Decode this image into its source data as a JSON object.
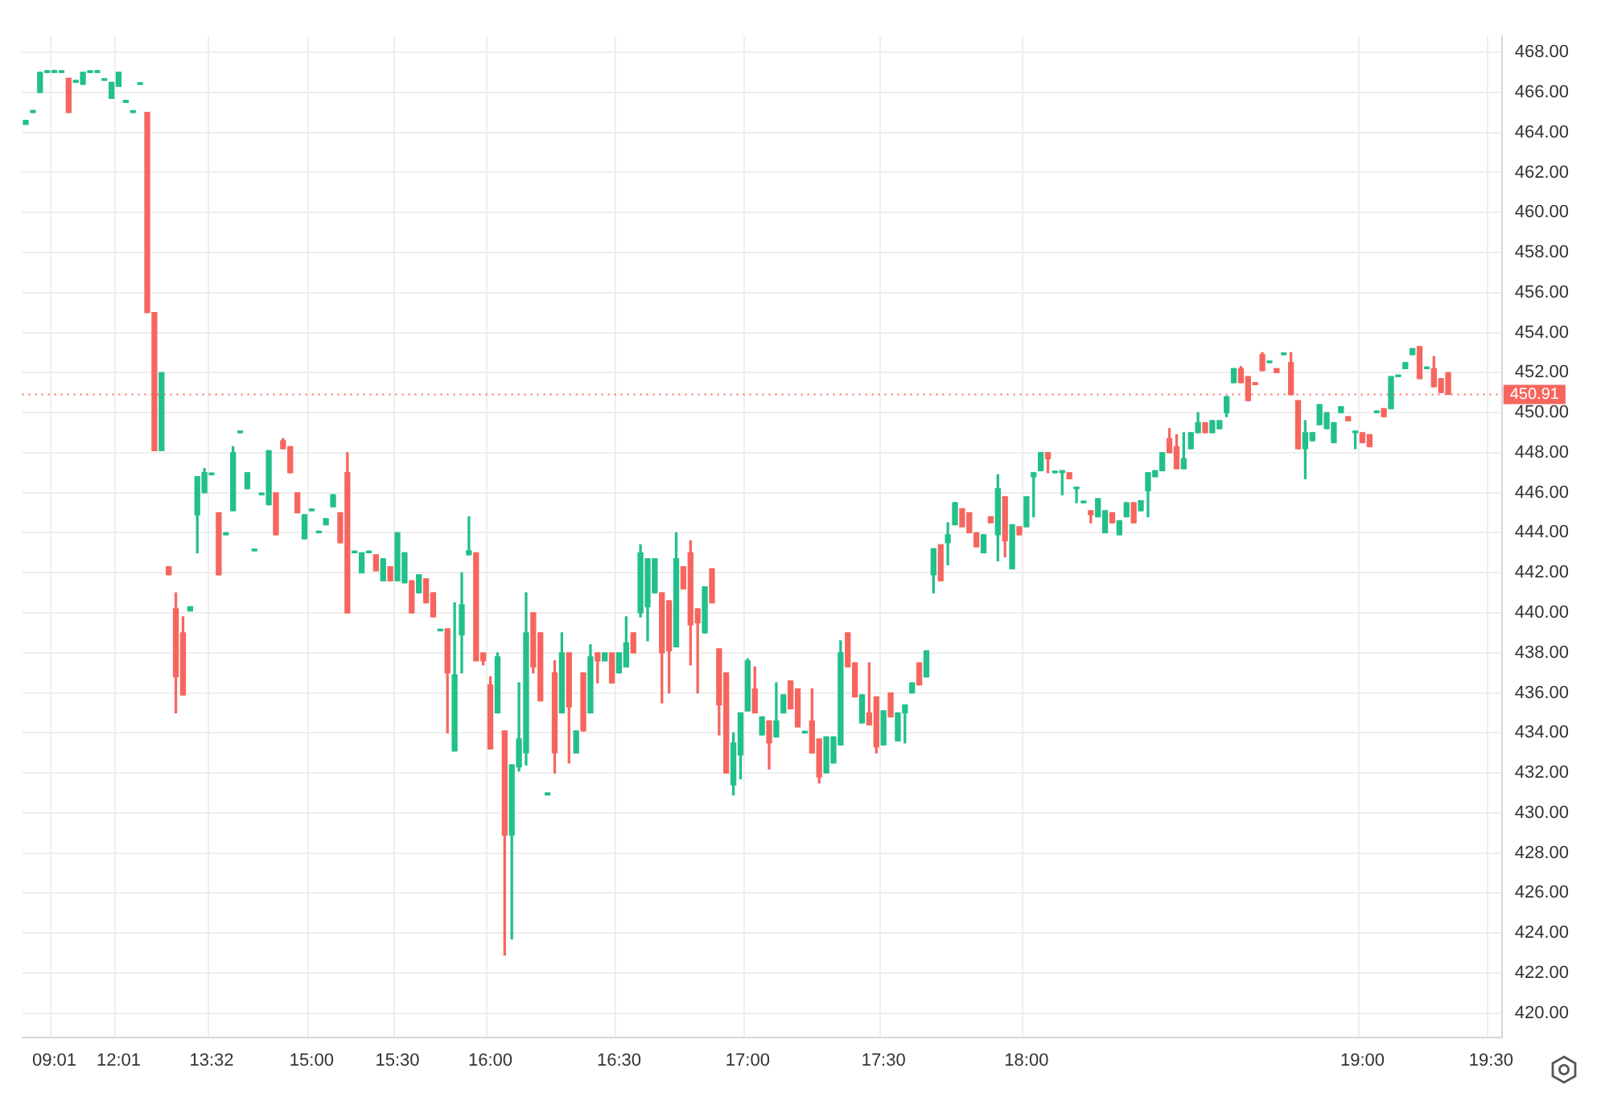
{
  "chart_data": {
    "type": "candlestick",
    "categories": [
      null,
      null,
      null,
      null,
      "09:01",
      null,
      null,
      null,
      null,
      null,
      null,
      null,
      null,
      "12:01",
      null,
      null,
      null,
      null,
      null,
      null,
      null,
      null,
      null,
      null,
      null,
      null,
      "13:32",
      null,
      null,
      null,
      null,
      null,
      null,
      null,
      null,
      null,
      null,
      null,
      null,
      null,
      "15:00",
      null,
      null,
      null,
      null,
      null,
      null,
      null,
      null,
      null,
      null,
      null,
      "15:30",
      null,
      null,
      null,
      null,
      null,
      null,
      null,
      null,
      null,
      null,
      null,
      null,
      "16:00",
      null,
      null,
      null,
      null,
      null,
      null,
      null,
      null,
      null,
      null,
      null,
      null,
      null,
      null,
      null,
      null,
      null,
      "16:30",
      null,
      null,
      null,
      null,
      null,
      null,
      null,
      null,
      null,
      null,
      null,
      null,
      null,
      null,
      null,
      null,
      null,
      "17:00",
      null,
      null,
      null,
      null,
      null,
      null,
      null,
      null,
      null,
      null,
      null,
      null,
      null,
      null,
      null,
      null,
      null,
      null,
      "17:30",
      null,
      null,
      null,
      null,
      null,
      null,
      null,
      null,
      null,
      null,
      null,
      null,
      null,
      null,
      null,
      null,
      null,
      null,
      null,
      "18:00",
      null,
      null,
      null,
      null,
      null,
      null,
      null,
      null,
      null,
      null,
      null,
      null,
      null,
      null,
      null,
      null,
      null,
      null,
      null,
      null,
      null,
      null,
      null,
      null,
      null,
      null,
      null,
      null,
      null,
      null,
      null,
      null,
      null,
      null,
      null,
      null,
      null,
      null,
      null,
      null,
      null,
      null,
      null,
      null,
      null,
      null,
      "19:00",
      null,
      null,
      null,
      null,
      null,
      null,
      null,
      null,
      null,
      null,
      null,
      null,
      null,
      null,
      null,
      null,
      null,
      "19:30",
      null
    ],
    "ohlc": [
      [
        464.4,
        464.6,
        464.4,
        464.6
      ],
      [
        465.0,
        465.1,
        465.0,
        465.1
      ],
      [
        466.0,
        467.0,
        466.0,
        467.0
      ],
      [
        467.0,
        467.0,
        467.0,
        467.0
      ],
      [
        467.0,
        467.1,
        467.0,
        467.0
      ],
      [
        467.0,
        467.0,
        467.0,
        467.0
      ],
      [
        466.7,
        466.7,
        465.0,
        465.0
      ],
      [
        466.5,
        466.6,
        466.5,
        466.6
      ],
      [
        466.4,
        467.0,
        466.4,
        467.0
      ],
      [
        467.0,
        467.0,
        467.0,
        467.0
      ],
      [
        467.0,
        467.0,
        467.0,
        467.0
      ],
      [
        466.6,
        466.6,
        466.6,
        466.6
      ],
      [
        465.7,
        466.5,
        465.7,
        466.5
      ],
      [
        466.3,
        467.0,
        466.3,
        467.0
      ],
      [
        465.5,
        465.6,
        465.5,
        465.6
      ],
      [
        465.0,
        465.0,
        465.0,
        465.0
      ],
      [
        466.4,
        466.4,
        466.4,
        466.4
      ],
      [
        465.0,
        465.0,
        455.0,
        455.0
      ],
      [
        455.0,
        455.0,
        448.1,
        448.1
      ],
      [
        448.1,
        452.0,
        448.1,
        452.0
      ],
      [
        442.3,
        442.3,
        441.9,
        441.9
      ],
      [
        440.2,
        441.0,
        435.0,
        436.8
      ],
      [
        439.0,
        439.8,
        435.9,
        435.9
      ],
      [
        440.1,
        440.3,
        440.1,
        440.3
      ],
      [
        444.9,
        446.8,
        443.0,
        446.8
      ],
      [
        446.0,
        447.2,
        446.0,
        447.0
      ],
      [
        446.9,
        446.9,
        446.9,
        446.9
      ],
      [
        445.0,
        445.0,
        441.9,
        441.9
      ],
      [
        443.9,
        444.0,
        443.9,
        444.0
      ],
      [
        445.1,
        448.3,
        445.1,
        448.0
      ],
      [
        449.0,
        449.0,
        449.0,
        449.0
      ],
      [
        446.2,
        447.0,
        446.2,
        447.0
      ],
      [
        443.1,
        443.1,
        443.1,
        443.1
      ],
      [
        445.9,
        445.9,
        445.9,
        445.9
      ],
      [
        445.4,
        448.1,
        445.4,
        448.1
      ],
      [
        446.0,
        446.0,
        443.9,
        443.9
      ],
      [
        448.6,
        448.7,
        448.2,
        448.2
      ],
      [
        448.3,
        448.3,
        447.0,
        447.0
      ],
      [
        446.0,
        446.0,
        445.0,
        445.0
      ],
      [
        443.7,
        444.9,
        443.7,
        444.9
      ],
      [
        445.1,
        445.1,
        445.1,
        445.1
      ],
      [
        444.0,
        444.0,
        444.0,
        444.0
      ],
      [
        444.4,
        444.7,
        444.4,
        444.7
      ],
      [
        445.3,
        445.9,
        445.3,
        445.9
      ],
      [
        445.0,
        445.0,
        443.5,
        443.5
      ],
      [
        447.0,
        448.0,
        440.0,
        440.0
      ],
      [
        443.0,
        443.0,
        443.0,
        443.0
      ],
      [
        442.0,
        443.0,
        442.0,
        443.0
      ],
      [
        443.0,
        443.0,
        443.0,
        443.0
      ],
      [
        442.9,
        442.9,
        442.1,
        442.1
      ],
      [
        441.6,
        442.7,
        441.6,
        442.7
      ],
      [
        442.3,
        442.3,
        441.6,
        441.6
      ],
      [
        441.6,
        444.0,
        441.6,
        444.0
      ],
      [
        441.5,
        443.0,
        441.5,
        443.0
      ],
      [
        441.6,
        441.6,
        440.0,
        440.0
      ],
      [
        441.0,
        441.9,
        441.0,
        441.9
      ],
      [
        441.7,
        441.7,
        440.5,
        440.5
      ],
      [
        441.0,
        441.0,
        439.8,
        439.8
      ],
      [
        439.1,
        439.1,
        439.1,
        439.1
      ],
      [
        439.2,
        439.2,
        434.0,
        437.0
      ],
      [
        433.1,
        440.5,
        433.1,
        436.9
      ],
      [
        438.9,
        442.0,
        437.0,
        440.4
      ],
      [
        442.9,
        444.8,
        442.9,
        443.1
      ],
      [
        443.0,
        443.0,
        437.6,
        437.6
      ],
      [
        438.0,
        438.0,
        437.4,
        437.6
      ],
      [
        436.4,
        436.8,
        433.2,
        433.2
      ],
      [
        435.0,
        438.0,
        435.0,
        437.8
      ],
      [
        434.1,
        434.1,
        422.9,
        428.9
      ],
      [
        428.9,
        432.4,
        423.7,
        432.4
      ],
      [
        432.3,
        436.5,
        432.1,
        433.7
      ],
      [
        433.0,
        441.0,
        432.4,
        439.0
      ],
      [
        440.0,
        440.0,
        437.0,
        437.3
      ],
      [
        439.0,
        439.0,
        435.6,
        435.6
      ],
      [
        430.9,
        431.0,
        430.9,
        431.0
      ],
      [
        437.0,
        437.6,
        432.0,
        433.0
      ],
      [
        435.0,
        439.0,
        435.0,
        438.0
      ],
      [
        438.0,
        438.0,
        432.5,
        435.3
      ],
      [
        433.0,
        434.1,
        433.0,
        434.1
      ],
      [
        437.0,
        437.0,
        434.1,
        434.1
      ],
      [
        435.0,
        438.4,
        435.0,
        437.8
      ],
      [
        438.0,
        438.0,
        436.5,
        437.6
      ],
      [
        437.6,
        438.0,
        437.6,
        438.0
      ],
      [
        438.0,
        438.0,
        436.5,
        436.5
      ],
      [
        437.0,
        438.0,
        437.0,
        438.0
      ],
      [
        437.3,
        439.8,
        437.3,
        438.5
      ],
      [
        439.0,
        439.0,
        438.0,
        438.0
      ],
      [
        440.0,
        443.4,
        439.8,
        443.0
      ],
      [
        440.3,
        442.7,
        438.6,
        442.7
      ],
      [
        441.0,
        442.7,
        441.0,
        442.7
      ],
      [
        441.0,
        441.0,
        435.5,
        438.0
      ],
      [
        440.6,
        440.6,
        436.0,
        438.1
      ],
      [
        438.3,
        444.0,
        438.3,
        442.7
      ],
      [
        442.3,
        442.3,
        441.2,
        441.2
      ],
      [
        443.0,
        443.6,
        437.4,
        439.4
      ],
      [
        440.2,
        440.2,
        436.0,
        439.5
      ],
      [
        439.0,
        441.3,
        439.0,
        441.3
      ],
      [
        442.2,
        442.2,
        440.5,
        440.5
      ],
      [
        438.2,
        438.2,
        433.9,
        435.4
      ],
      [
        437.0,
        437.0,
        432.0,
        432.0
      ],
      [
        431.4,
        434.0,
        430.9,
        433.5
      ],
      [
        432.9,
        435.0,
        431.7,
        435.0
      ],
      [
        435.1,
        437.7,
        435.1,
        437.6
      ],
      [
        436.2,
        437.3,
        435.0,
        435.0
      ],
      [
        433.9,
        434.8,
        433.9,
        434.8
      ],
      [
        434.6,
        434.6,
        432.2,
        433.5
      ],
      [
        433.8,
        436.5,
        433.8,
        434.6
      ],
      [
        435.0,
        435.9,
        435.0,
        435.9
      ],
      [
        436.6,
        436.6,
        435.2,
        435.2
      ],
      [
        436.2,
        436.2,
        434.3,
        434.3
      ],
      [
        434.0,
        434.0,
        434.0,
        434.0
      ],
      [
        434.6,
        436.2,
        433.0,
        433.0
      ],
      [
        433.7,
        433.7,
        431.5,
        431.8
      ],
      [
        432.0,
        433.8,
        432.0,
        433.8
      ],
      [
        432.5,
        433.8,
        432.5,
        433.8
      ],
      [
        433.4,
        438.6,
        433.4,
        438.0
      ],
      [
        439.0,
        439.0,
        437.3,
        437.3
      ],
      [
        437.5,
        437.5,
        435.8,
        435.8
      ],
      [
        434.5,
        435.9,
        434.5,
        435.9
      ],
      [
        435.0,
        437.5,
        434.4,
        434.4
      ],
      [
        435.8,
        435.8,
        433.0,
        433.3
      ],
      [
        433.4,
        435.1,
        433.4,
        435.1
      ],
      [
        436.0,
        436.0,
        434.8,
        434.8
      ],
      [
        433.6,
        435.0,
        433.6,
        435.0
      ],
      [
        435.0,
        435.4,
        433.5,
        435.4
      ],
      [
        436.0,
        436.5,
        436.0,
        436.5
      ],
      [
        437.5,
        437.5,
        436.4,
        436.4
      ],
      [
        436.8,
        438.1,
        436.8,
        438.1
      ],
      [
        441.9,
        443.2,
        441.0,
        443.2
      ],
      [
        443.4,
        443.4,
        441.6,
        441.6
      ],
      [
        443.5,
        444.5,
        442.4,
        443.9
      ],
      [
        444.4,
        445.5,
        444.4,
        445.5
      ],
      [
        445.2,
        445.2,
        444.3,
        444.3
      ],
      [
        445.0,
        445.0,
        444.0,
        444.0
      ],
      [
        444.0,
        444.0,
        443.3,
        443.3
      ],
      [
        443.0,
        443.9,
        443.0,
        443.9
      ],
      [
        444.8,
        444.8,
        444.5,
        444.5
      ],
      [
        443.9,
        446.9,
        442.6,
        446.2
      ],
      [
        445.8,
        445.8,
        442.8,
        443.6
      ],
      [
        442.2,
        444.4,
        442.2,
        444.4
      ],
      [
        444.3,
        444.3,
        443.9,
        443.9
      ],
      [
        444.3,
        445.8,
        444.3,
        445.8
      ],
      [
        446.8,
        447.0,
        444.8,
        447.0
      ],
      [
        447.1,
        448.0,
        447.1,
        448.0
      ],
      [
        448.0,
        448.0,
        447.0,
        447.7
      ],
      [
        447.0,
        447.0,
        447.0,
        447.0
      ],
      [
        447.0,
        447.1,
        445.9,
        447.1
      ],
      [
        447.0,
        447.0,
        446.7,
        446.7
      ],
      [
        446.2,
        446.2,
        445.5,
        446.2
      ],
      [
        445.5,
        445.5,
        445.5,
        445.5
      ],
      [
        445.1,
        445.1,
        444.5,
        444.9
      ],
      [
        444.8,
        445.7,
        444.8,
        445.7
      ],
      [
        444.0,
        445.1,
        444.0,
        445.1
      ],
      [
        445.0,
        445.0,
        444.5,
        444.5
      ],
      [
        443.9,
        444.6,
        443.9,
        444.6
      ],
      [
        444.8,
        445.5,
        444.8,
        445.5
      ],
      [
        445.5,
        445.5,
        444.5,
        444.5
      ],
      [
        445.1,
        445.6,
        445.1,
        445.6
      ],
      [
        446.1,
        447.0,
        444.8,
        447.0
      ],
      [
        446.8,
        447.1,
        446.8,
        447.1
      ],
      [
        447.1,
        448.0,
        447.1,
        448.0
      ],
      [
        448.7,
        449.2,
        448.0,
        448.0
      ],
      [
        448.3,
        448.9,
        447.2,
        447.2
      ],
      [
        447.2,
        449.0,
        447.2,
        447.7
      ],
      [
        448.2,
        449.0,
        448.2,
        449.0
      ],
      [
        449.0,
        450.0,
        449.0,
        449.5
      ],
      [
        449.5,
        449.5,
        449.0,
        449.0
      ],
      [
        449.0,
        449.6,
        449.0,
        449.6
      ],
      [
        449.2,
        449.6,
        449.2,
        449.6
      ],
      [
        450.0,
        450.8,
        449.8,
        450.8
      ],
      [
        451.5,
        452.2,
        451.5,
        452.2
      ],
      [
        452.2,
        452.3,
        451.5,
        451.5
      ],
      [
        451.8,
        451.8,
        450.6,
        450.6
      ],
      [
        451.5,
        451.5,
        451.4,
        451.4
      ],
      [
        452.9,
        453.0,
        452.1,
        452.1
      ],
      [
        452.5,
        452.5,
        452.5,
        452.5
      ],
      [
        452.2,
        452.2,
        452.0,
        452.0
      ],
      [
        452.9,
        452.9,
        452.9,
        452.9
      ],
      [
        452.5,
        453.0,
        450.9,
        450.9
      ],
      [
        450.6,
        450.6,
        448.2,
        448.2
      ],
      [
        448.2,
        449.6,
        446.7,
        449.0
      ],
      [
        448.6,
        449.0,
        448.6,
        449.0
      ],
      [
        449.4,
        450.4,
        449.4,
        450.4
      ],
      [
        449.2,
        450.0,
        449.2,
        450.0
      ],
      [
        448.5,
        449.5,
        448.5,
        449.5
      ],
      [
        450.0,
        450.3,
        450.0,
        450.3
      ],
      [
        449.8,
        449.8,
        449.6,
        449.6
      ],
      [
        449.0,
        449.0,
        448.2,
        449.0
      ],
      [
        449.0,
        449.0,
        448.5,
        448.5
      ],
      [
        448.9,
        448.9,
        448.3,
        448.3
      ],
      [
        450.0,
        450.0,
        450.0,
        450.0
      ],
      [
        450.2,
        450.2,
        449.8,
        449.8
      ],
      [
        450.2,
        451.8,
        450.2,
        451.8
      ],
      [
        451.8,
        451.8,
        451.8,
        451.8
      ],
      [
        452.2,
        452.5,
        452.2,
        452.5
      ],
      [
        452.9,
        453.2,
        452.9,
        453.2
      ],
      [
        453.3,
        453.3,
        451.7,
        451.7
      ],
      [
        452.2,
        452.2,
        452.2,
        452.2
      ],
      [
        452.2,
        452.8,
        451.3,
        451.3
      ],
      [
        451.7,
        451.7,
        451.0,
        451.0
      ],
      [
        452.0,
        452.0,
        450.91,
        450.91
      ],
      null,
      null,
      null,
      null,
      null,
      null,
      null
    ],
    "colors": [
      "#22c08a",
      "#22c08a",
      "#22c08a",
      "#22c08a",
      "#22c08a",
      "#22c08a",
      "#f6665f",
      "#22c08a",
      "#22c08a",
      "#22c08a",
      "#22c08a",
      "#22c08a",
      "#22c08a",
      "#22c08a",
      "#22c08a",
      "#22c08a",
      "#22c08a",
      "#f6665f",
      "#f6665f",
      "#22c08a",
      "#f6665f",
      "#f6665f",
      "#f6665f",
      "#22c08a",
      "#22c08a",
      "#22c08a",
      "#22c08a",
      "#f6665f",
      "#22c08a",
      "#22c08a",
      "#22c08a",
      "#22c08a",
      "#22c08a",
      "#22c08a",
      "#22c08a",
      "#f6665f",
      "#f6665f",
      "#f6665f",
      "#f6665f",
      "#22c08a",
      "#22c08a",
      "#22c08a",
      "#22c08a",
      "#22c08a",
      "#f6665f",
      "#f6665f",
      "#22c08a",
      "#22c08a",
      "#22c08a",
      "#f6665f",
      "#22c08a",
      "#f6665f",
      "#22c08a",
      "#22c08a",
      "#f6665f",
      "#22c08a",
      "#f6665f",
      "#f6665f",
      "#22c08a",
      "#f6665f",
      "#22c08a",
      "#22c08a",
      "#22c08a",
      "#f6665f",
      "#f6665f",
      "#f6665f",
      "#22c08a",
      "#f6665f",
      "#22c08a",
      "#22c08a",
      "#22c08a",
      "#f6665f",
      "#f6665f",
      "#22c08a",
      "#f6665f",
      "#22c08a",
      "#f6665f",
      "#22c08a",
      "#f6665f",
      "#22c08a",
      "#f6665f",
      "#22c08a",
      "#f6665f",
      "#22c08a",
      "#22c08a",
      "#f6665f",
      "#22c08a",
      "#22c08a",
      "#22c08a",
      "#f6665f",
      "#f6665f",
      "#22c08a",
      "#f6665f",
      "#f6665f",
      "#f6665f",
      "#22c08a",
      "#f6665f",
      "#f6665f",
      "#f6665f",
      "#22c08a",
      "#22c08a",
      "#22c08a",
      "#f6665f",
      "#22c08a",
      "#f6665f",
      "#22c08a",
      "#22c08a",
      "#f6665f",
      "#f6665f",
      "#22c08a",
      "#f6665f",
      "#f6665f",
      "#22c08a",
      "#22c08a",
      "#22c08a",
      "#f6665f",
      "#f6665f",
      "#22c08a",
      "#f6665f",
      "#f6665f",
      "#22c08a",
      "#f6665f",
      "#22c08a",
      "#22c08a",
      "#22c08a",
      "#f6665f",
      "#22c08a",
      "#22c08a",
      "#f6665f",
      "#22c08a",
      "#22c08a",
      "#f6665f",
      "#f6665f",
      "#f6665f",
      "#22c08a",
      "#f6665f",
      "#22c08a",
      "#f6665f",
      "#22c08a",
      "#f6665f",
      "#22c08a",
      "#22c08a",
      "#22c08a",
      "#f6665f",
      "#22c08a",
      "#22c08a",
      "#f6665f",
      "#22c08a",
      "#22c08a",
      "#f6665f",
      "#22c08a",
      "#22c08a",
      "#f6665f",
      "#22c08a",
      "#22c08a",
      "#f6665f",
      "#22c08a",
      "#22c08a",
      "#22c08a",
      "#22c08a",
      "#f6665f",
      "#f6665f",
      "#22c08a",
      "#22c08a",
      "#22c08a",
      "#f6665f",
      "#22c08a",
      "#22c08a",
      "#22c08a",
      "#22c08a",
      "#f6665f",
      "#f6665f",
      "#f6665f",
      "#f6665f",
      "#22c08a",
      "#f6665f",
      "#22c08a",
      "#f6665f",
      "#f6665f",
      "#22c08a",
      "#22c08a",
      "#22c08a",
      "#22c08a",
      "#22c08a",
      "#22c08a",
      "#f6665f",
      "#22c08a",
      "#f6665f",
      "#f6665f",
      "#22c08a",
      "#f6665f",
      "#22c08a",
      "#22c08a",
      "#22c08a",
      "#22c08a",
      "#f6665f",
      "#22c08a",
      "#f6665f",
      "#f6665f",
      "#f6665f",
      null,
      null,
      null,
      null,
      null,
      null,
      null
    ],
    "ylim": [
      418.8,
      468.8
    ],
    "yticks": [
      {
        "value": 420,
        "label": "420.00"
      },
      {
        "value": 422,
        "label": "422.00"
      },
      {
        "value": 424,
        "label": "424.00"
      },
      {
        "value": 426,
        "label": "426.00"
      },
      {
        "value": 428,
        "label": "428.00"
      },
      {
        "value": 430,
        "label": "430.00"
      },
      {
        "value": 432,
        "label": "432.00"
      },
      {
        "value": 434,
        "label": "434.00"
      },
      {
        "value": 436,
        "label": "436.00"
      },
      {
        "value": 438,
        "label": "438.00"
      },
      {
        "value": 440,
        "label": "440.00"
      },
      {
        "value": 442,
        "label": "442.00"
      },
      {
        "value": 444,
        "label": "444.00"
      },
      {
        "value": 446,
        "label": "446.00"
      },
      {
        "value": 448,
        "label": "448.00"
      },
      {
        "value": 450,
        "label": "450.00"
      },
      {
        "value": 452,
        "label": "452.00"
      },
      {
        "value": 454,
        "label": "454.00"
      },
      {
        "value": 456,
        "label": "456.00"
      },
      {
        "value": 458,
        "label": "458.00"
      },
      {
        "value": 460,
        "label": "460.00"
      },
      {
        "value": 462,
        "label": "462.00"
      },
      {
        "value": 464,
        "label": "464.00"
      },
      {
        "value": 466,
        "label": "466.00"
      },
      {
        "value": 468,
        "label": "468.00"
      }
    ],
    "ref_lines": [
      {
        "axis": "y",
        "value": 450.91,
        "label": "450.91",
        "color": "#f6665f",
        "line_style": "dotted"
      }
    ],
    "grid": true,
    "legend": false
  }
}
